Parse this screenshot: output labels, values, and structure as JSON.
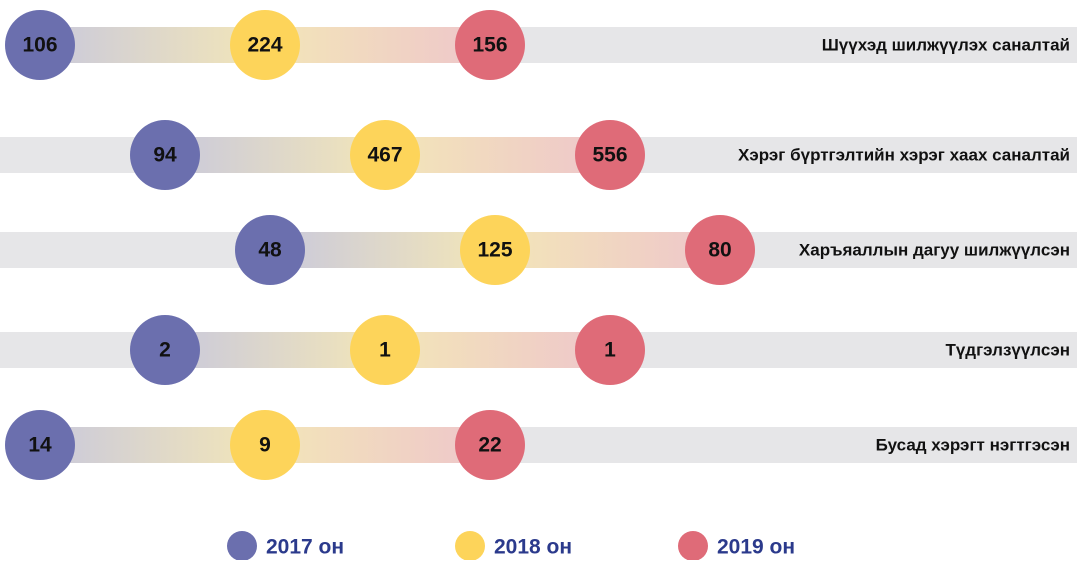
{
  "rows": [
    {
      "label": "Шүүхэд шилжүүлэх саналтай",
      "values": [
        "106",
        "224",
        "156"
      ]
    },
    {
      "label": "Хэрэг бүртгэлтийн хэрэг хаах саналтай",
      "values": [
        "94",
        "467",
        "556"
      ]
    },
    {
      "label": "Харъяаллын дагуу шилжүүлсэн",
      "values": [
        "48",
        "125",
        "80"
      ]
    },
    {
      "label": "Түдгэлзүүлсэн",
      "values": [
        "2",
        "1",
        "1"
      ]
    },
    {
      "label": "Бусад хэрэгт нэгтгэсэн",
      "values": [
        "14",
        "9",
        "22"
      ]
    }
  ],
  "legend": [
    {
      "label": "2017 он",
      "color": "#6b6fae"
    },
    {
      "label": "2018 он",
      "color": "#fdd45a"
    },
    {
      "label": "2019 он",
      "color": "#df6b78"
    }
  ]
}
